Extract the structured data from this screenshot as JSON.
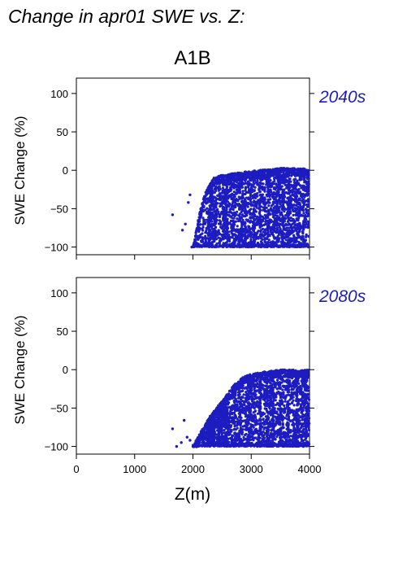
{
  "colors": {
    "points": "#1c1cc0",
    "period_label": "#1c1cc0"
  },
  "chart_data": {
    "type": "scatter",
    "title": "Change in apr01 SWE vs. Z:",
    "subtitle": "A1B",
    "xlabel": "Z(m)",
    "x_ticks": [
      "0",
      "1000",
      "2000",
      "3000",
      "4000"
    ],
    "xlim": [
      0,
      4000
    ],
    "panels": [
      {
        "period": "2040s",
        "ylabel": "SWE Change (%)",
        "ylim": [
          -110,
          120
        ],
        "y_ticks": [
          "100",
          "50",
          "0",
          "−50",
          "−100"
        ],
        "x_ticks_shown": false,
        "envelope": [
          [
            2000,
            -100
          ],
          [
            2100,
            -60
          ],
          [
            2200,
            -30
          ],
          [
            2350,
            -10
          ],
          [
            2500,
            -6
          ],
          [
            2800,
            -3
          ],
          [
            3000,
            -1
          ],
          [
            3500,
            3
          ],
          [
            4000,
            2
          ]
        ],
        "outliers": [
          [
            1650,
            -58
          ],
          [
            1820,
            -78
          ],
          [
            1870,
            -70
          ],
          [
            1920,
            -42
          ],
          [
            1950,
            -32
          ],
          [
            1980,
            -100
          ]
        ]
      },
      {
        "period": "2080s",
        "ylabel": "SWE Change (%)",
        "ylim": [
          -110,
          120
        ],
        "y_ticks": [
          "100",
          "50",
          "0",
          "−50",
          "−100"
        ],
        "x_ticks_shown": true,
        "envelope": [
          [
            2000,
            -100
          ],
          [
            2150,
            -78
          ],
          [
            2300,
            -60
          ],
          [
            2500,
            -40
          ],
          [
            2700,
            -20
          ],
          [
            2900,
            -7
          ],
          [
            3200,
            -3
          ],
          [
            3500,
            0
          ],
          [
            4000,
            0
          ]
        ],
        "outliers": [
          [
            1650,
            -77
          ],
          [
            1720,
            -100
          ],
          [
            1800,
            -95
          ],
          [
            1850,
            -66
          ],
          [
            1900,
            -88
          ],
          [
            1950,
            -92
          ]
        ]
      }
    ]
  }
}
